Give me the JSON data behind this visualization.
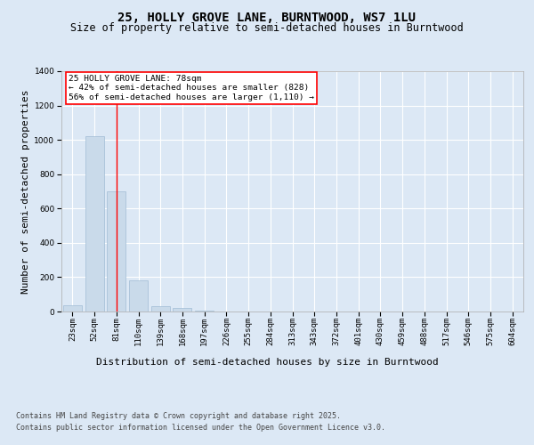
{
  "title": "25, HOLLY GROVE LANE, BURNTWOOD, WS7 1LU",
  "subtitle": "Size of property relative to semi-detached houses in Burntwood",
  "xlabel": "Distribution of semi-detached houses by size in Burntwood",
  "ylabel": "Number of semi-detached properties",
  "footnote1": "Contains HM Land Registry data © Crown copyright and database right 2025.",
  "footnote2": "Contains public sector information licensed under the Open Government Licence v3.0.",
  "annotation_title": "25 HOLLY GROVE LANE: 78sqm",
  "annotation_line1": "← 42% of semi-detached houses are smaller (828)",
  "annotation_line2": "56% of semi-detached houses are larger (1,110) →",
  "categories": [
    "23sqm",
    "52sqm",
    "81sqm",
    "110sqm",
    "139sqm",
    "168sqm",
    "197sqm",
    "226sqm",
    "255sqm",
    "284sqm",
    "313sqm",
    "343sqm",
    "372sqm",
    "401sqm",
    "430sqm",
    "459sqm",
    "488sqm",
    "517sqm",
    "546sqm",
    "575sqm",
    "604sqm"
  ],
  "values": [
    35,
    1020,
    700,
    180,
    30,
    20,
    5,
    0,
    0,
    0,
    0,
    0,
    0,
    0,
    0,
    0,
    0,
    0,
    0,
    0,
    0
  ],
  "bar_color": "#c9daea",
  "bar_edge_color": "#a0bcd4",
  "redline_x": 2,
  "ylim": [
    0,
    1400
  ],
  "yticks": [
    0,
    200,
    400,
    600,
    800,
    1000,
    1200,
    1400
  ],
  "bg_color": "#dce8f5",
  "plot_bg_color": "#dce8f5",
  "grid_color": "#ffffff",
  "title_fontsize": 10,
  "subtitle_fontsize": 8.5,
  "axis_label_fontsize": 8,
  "tick_fontsize": 6.5,
  "footnote_fontsize": 6.0
}
